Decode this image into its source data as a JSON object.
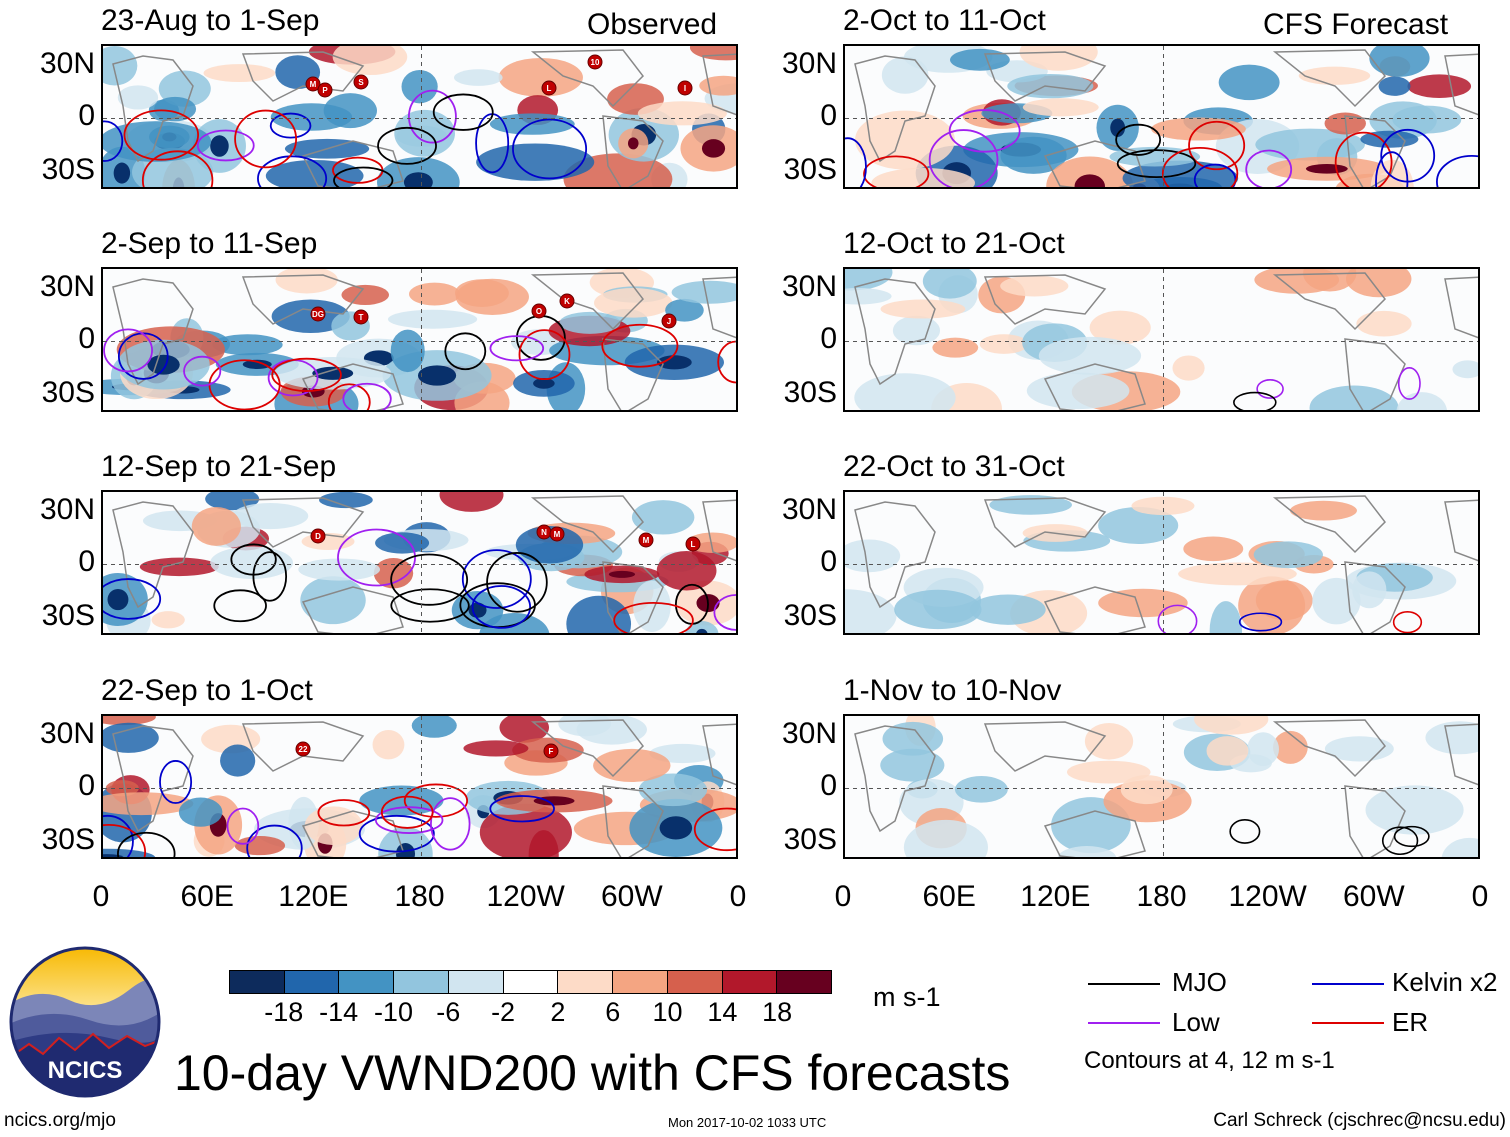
{
  "observed_label": "Observed",
  "forecast_label": "CFS Forecast",
  "panels_observed": [
    {
      "period": "23-Aug to 1-Sep"
    },
    {
      "period": "2-Sep to 11-Sep"
    },
    {
      "period": "12-Sep to 21-Sep"
    },
    {
      "period": "22-Sep to 1-Oct"
    }
  ],
  "panels_forecast": [
    {
      "period": "2-Oct to 11-Oct"
    },
    {
      "period": "12-Oct to 21-Oct"
    },
    {
      "period": "22-Oct to 31-Oct"
    },
    {
      "period": "1-Nov to 10-Nov"
    }
  ],
  "lat_labels": [
    "30N",
    "0",
    "30S"
  ],
  "lon_labels": [
    "0",
    "60E",
    "120E",
    "180",
    "120W",
    "60W",
    "0"
  ],
  "colorbar": {
    "colors": [
      "#0d2b5c",
      "#2166ac",
      "#4393c3",
      "#92c5de",
      "#d1e5f0",
      "#ffffff",
      "#fddbc7",
      "#f4a582",
      "#d6604d",
      "#b2182b",
      "#67001f"
    ],
    "ticks": [
      "-18",
      "-14",
      "-10",
      "-6",
      "-2",
      "2",
      "6",
      "10",
      "14",
      "18"
    ],
    "units": "m s-1"
  },
  "legend": [
    {
      "label": "MJO",
      "color": "#000000"
    },
    {
      "label": "Kelvin x2",
      "color": "#0000cc"
    },
    {
      "label": "Low",
      "color": "#a020f0"
    },
    {
      "label": "ER",
      "color": "#dd0000"
    }
  ],
  "contour_note": "Contours at 4, 12 m s-1",
  "main_title": "10-day VWND200 with CFS forecasts",
  "logo_text": "NCICS",
  "footer": {
    "url": "ncics.org/mjo",
    "timestamp": "Mon 2017-10-02 1033 UTC",
    "author": "Carl Schreck (cjschrec@ncsu.edu)"
  },
  "storms": [
    [
      "M",
      "P",
      "S",
      "L",
      "10",
      "I"
    ],
    [
      "DG",
      "T",
      "O",
      "K",
      "J"
    ],
    [
      "D",
      "N",
      "M",
      "M",
      "L"
    ],
    [
      "22",
      "F"
    ]
  ]
}
